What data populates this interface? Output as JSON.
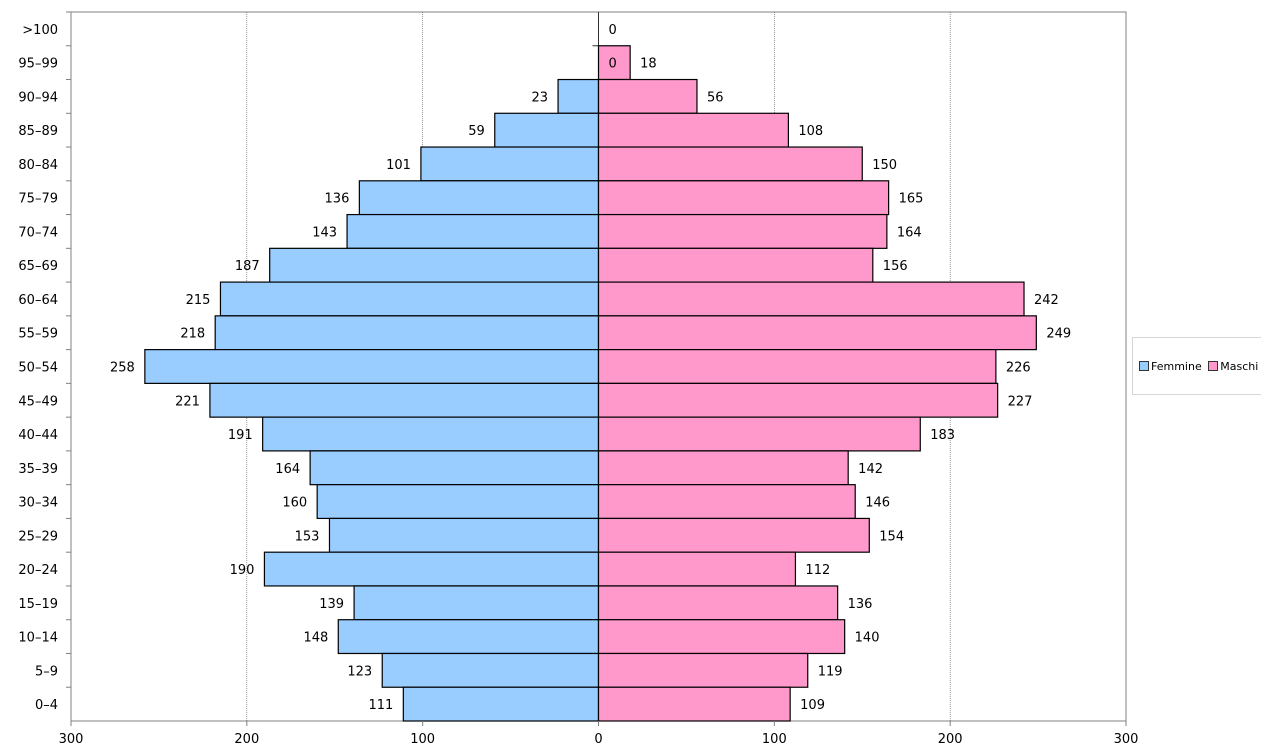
{
  "chart_data": {
    "type": "bar",
    "orientation": "horizontal",
    "categories": [
      ">100",
      "95–99",
      "90–94",
      "85–89",
      "80–84",
      "75–79",
      "70–74",
      "65–69",
      "60–64",
      "55–59",
      "50–54",
      "45–49",
      "40–44",
      "35–39",
      "30–34",
      "25–29",
      "20–24",
      "15–19",
      "10–14",
      "5–9",
      "0–4"
    ],
    "series": [
      {
        "name": "Femmine",
        "color": "#99ccff",
        "side": "left",
        "values": [
          0,
          0,
          23,
          59,
          101,
          136,
          143,
          187,
          215,
          218,
          258,
          221,
          191,
          164,
          160,
          153,
          190,
          139,
          148,
          123,
          111
        ]
      },
      {
        "name": "Maschi",
        "color": "#ff99cc",
        "side": "right",
        "values": [
          0,
          18,
          56,
          108,
          150,
          165,
          164,
          156,
          242,
          249,
          226,
          227,
          183,
          142,
          146,
          154,
          112,
          136,
          140,
          119,
          109
        ]
      }
    ],
    "x_ticks": [
      "300",
      "200",
      "100",
      "0",
      "100",
      "200",
      "300"
    ],
    "xlim": [
      -300,
      300
    ],
    "grid": "vertical",
    "legend": "right"
  }
}
